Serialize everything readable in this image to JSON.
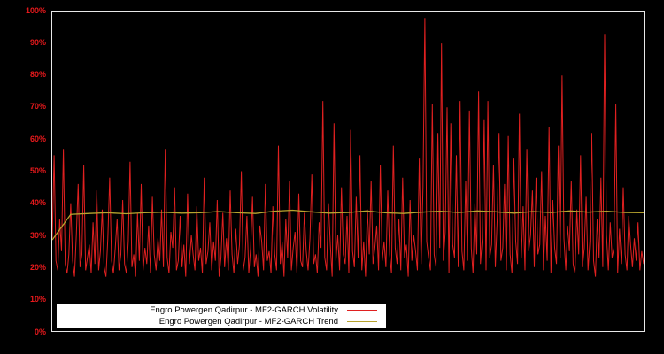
{
  "colors": {
    "background": "#000000",
    "plot_border": "#e8e8e8",
    "axis_label": "#e8191c",
    "volatility_line": "#e02020",
    "trend_line": "#b8a42e",
    "legend_background": "#ffffff",
    "legend_text": "#000000"
  },
  "legend": {
    "volatility_label": "Engro Powergen Qadirpur - MF2-GARCH Volatility",
    "trend_label": "Engro Powergen Qadirpur - MF2-GARCH Trend"
  },
  "chart_data": {
    "type": "line",
    "title": "",
    "xlabel": "",
    "ylabel": "",
    "ylim": [
      0,
      100
    ],
    "grid": false,
    "legend_position": "bottom-left-inside",
    "yticks": [
      "0%",
      "10%",
      "20%",
      "30%",
      "40%",
      "50%",
      "60%",
      "70%",
      "80%",
      "90%",
      "100%"
    ],
    "series": [
      {
        "name": "Engro Powergen Qadirpur - MF2-GARCH Volatility",
        "color": "#e02020",
        "values": [
          29,
          55,
          22,
          19,
          35,
          25,
          57,
          21,
          18,
          24,
          40,
          22,
          17,
          30,
          46,
          20,
          24,
          52,
          19,
          23,
          27,
          18,
          34,
          21,
          44,
          19,
          25,
          38,
          20,
          17,
          29,
          48,
          22,
          18,
          26,
          35,
          19,
          24,
          41,
          21,
          18,
          28,
          53,
          20,
          24,
          17,
          37,
          22,
          46,
          19,
          26,
          21,
          33,
          18,
          42,
          24,
          19,
          29,
          22,
          38,
          20,
          57,
          23,
          18,
          31,
          26,
          45,
          19,
          22,
          36,
          20,
          27,
          17,
          43,
          21,
          30,
          24,
          19,
          39,
          22,
          26,
          18,
          48,
          21,
          25,
          34,
          19,
          28,
          22,
          41,
          17,
          23,
          37,
          20,
          29,
          19,
          44,
          24,
          18,
          32,
          21,
          27,
          50,
          19,
          23,
          36,
          18,
          26,
          42,
          20,
          24,
          17,
          33,
          28,
          19,
          46,
          22,
          25,
          18,
          39,
          24,
          19,
          58,
          21,
          28,
          17,
          35,
          23,
          47,
          19,
          26,
          31,
          18,
          43,
          22,
          20,
          37,
          25,
          19,
          29,
          49,
          21,
          24,
          18,
          34,
          26,
          72,
          23,
          19,
          40,
          27,
          17,
          65,
          22,
          30,
          19,
          45,
          24,
          21,
          36,
          18,
          63,
          25,
          20,
          42,
          23,
          55,
          19,
          28,
          17,
          38,
          24,
          47,
          21,
          26,
          33,
          19,
          52,
          22,
          28,
          20,
          44,
          24,
          18,
          58,
          26,
          21,
          35,
          19,
          48,
          23,
          27,
          17,
          41,
          22,
          30,
          25,
          19,
          54,
          21,
          45,
          98,
          28,
          23,
          19,
          71,
          24,
          20,
          62,
          26,
          90,
          22,
          31,
          70,
          18,
          65,
          27,
          23,
          55,
          20,
          72,
          25,
          19,
          47,
          22,
          69,
          26,
          18,
          40,
          24,
          75,
          21,
          29,
          66,
          19,
          72,
          23,
          27,
          52,
          20,
          35,
          62,
          22,
          26,
          46,
          19,
          61,
          24,
          18,
          54,
          28,
          21,
          68,
          23,
          39,
          19,
          57,
          25,
          30,
          44,
          20,
          48,
          24,
          27,
          50,
          19,
          36,
          22,
          64,
          18,
          41,
          26,
          21,
          58,
          23,
          80,
          29,
          19,
          33,
          25,
          47,
          21,
          18,
          38,
          24,
          55,
          20,
          26,
          42,
          19,
          28,
          62,
          22,
          17,
          35,
          23,
          48,
          20,
          93,
          30,
          19,
          34,
          23,
          26,
          71,
          18,
          32,
          21,
          45,
          24,
          19,
          36,
          27,
          20,
          29,
          22,
          34,
          19,
          25,
          21
        ]
      },
      {
        "name": "Engro Powergen Qadirpur - MF2-GARCH Trend",
        "color": "#b8a42e",
        "values": [
          28.5,
          36.5,
          36.8,
          37.0,
          36.7,
          37.0,
          37.2,
          36.9,
          37.0,
          37.4,
          37.0,
          36.8,
          37.5,
          37.8,
          37.3,
          36.9,
          37.1,
          37.6,
          37.0,
          36.8,
          37.2,
          37.5,
          37.1,
          37.6,
          37.3,
          36.9,
          37.4,
          37.1,
          37.6,
          37.2,
          37.5,
          37.1,
          37.0
        ]
      }
    ]
  }
}
